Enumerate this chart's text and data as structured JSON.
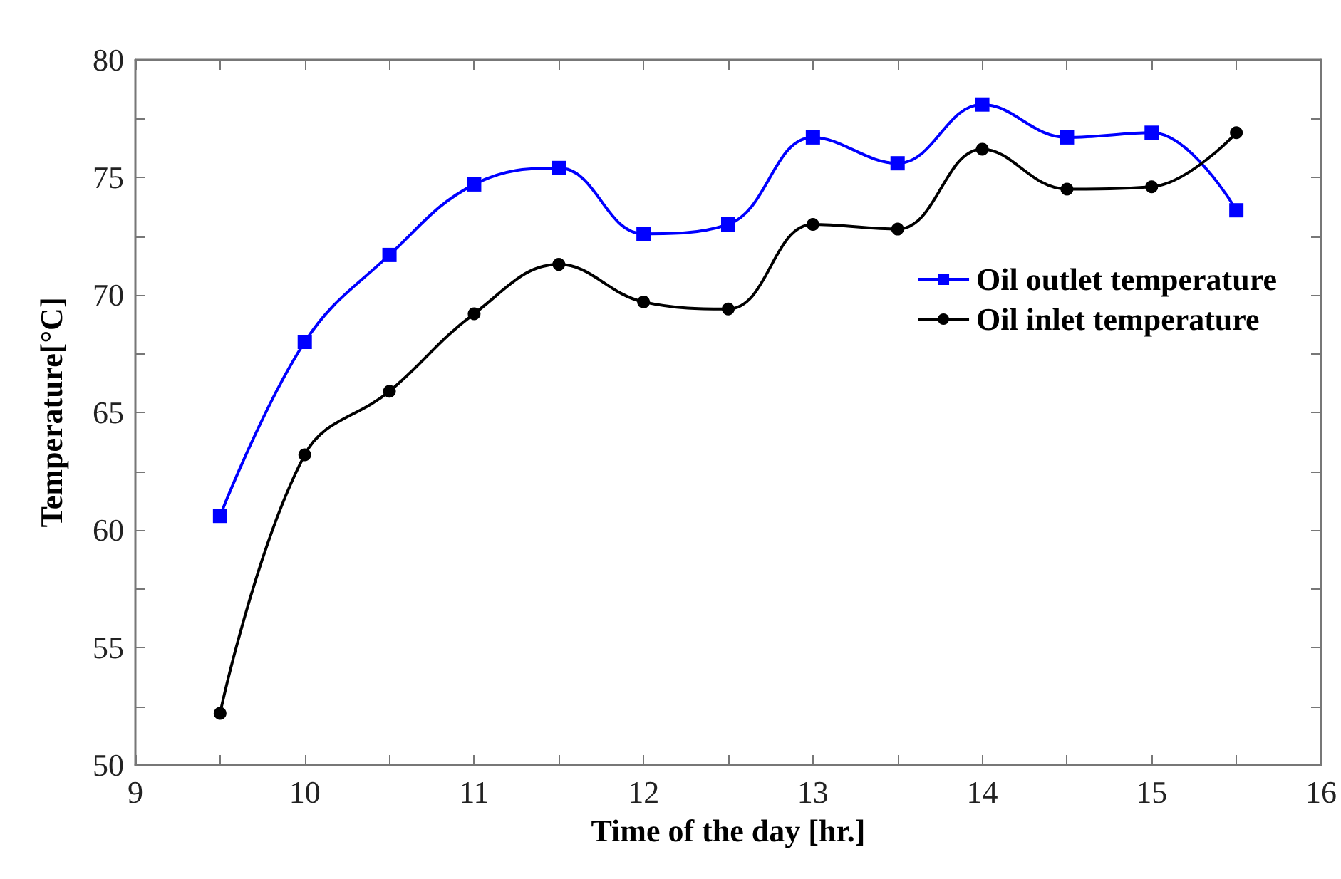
{
  "chart_data": {
    "type": "line",
    "xlabel": "Time of the day [hr.]",
    "ylabel": "Temperature[°C]",
    "x": [
      9.5,
      10,
      10.5,
      11,
      11.5,
      12,
      12.5,
      13,
      13.5,
      14,
      14.5,
      15,
      15.5
    ],
    "series": [
      {
        "name": "Oil outlet temperature",
        "color": "#0000ff",
        "marker": "square",
        "values": [
          60.6,
          68.0,
          71.7,
          74.7,
          75.4,
          72.6,
          73.0,
          76.7,
          75.6,
          78.1,
          76.7,
          76.9,
          73.6
        ]
      },
      {
        "name": "Oil inlet temperature",
        "color": "#000000",
        "marker": "circle",
        "values": [
          52.2,
          63.2,
          65.9,
          69.2,
          71.3,
          69.7,
          69.4,
          73.0,
          72.8,
          76.2,
          74.5,
          74.6,
          76.9
        ]
      }
    ],
    "xlim": [
      9,
      16
    ],
    "xticks": [
      9,
      10,
      11,
      12,
      13,
      14,
      15,
      16
    ],
    "ylim": [
      50,
      80
    ],
    "yticks": [
      50,
      55,
      60,
      65,
      70,
      75,
      80
    ],
    "grid": false,
    "legend": "right",
    "line_style": "solid"
  }
}
